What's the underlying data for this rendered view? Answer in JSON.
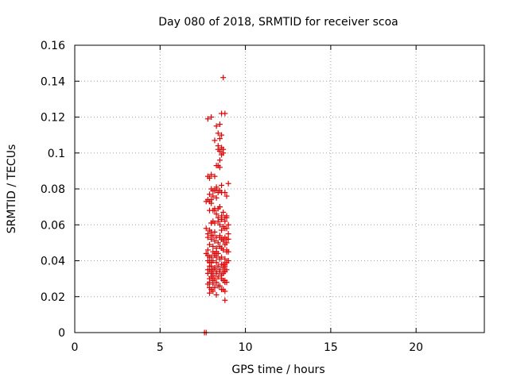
{
  "chart_data": {
    "type": "scatter",
    "title": "Day 080 of 2018, SRMTID for receiver scoa",
    "xlabel": "GPS time / hours",
    "ylabel": "SRMTID / TECUs",
    "xlim": [
      0,
      24
    ],
    "ylim": [
      0,
      0.16
    ],
    "xticks": [
      "0",
      "5",
      "10",
      "15",
      "20"
    ],
    "yticks": [
      "0",
      "0.02",
      "0.04",
      "0.06",
      "0.08",
      "0.1",
      "0.12",
      "0.14",
      "0.16"
    ],
    "grid": true,
    "marker": "plus",
    "color": "#e00000",
    "series": [
      {
        "x": [
          8.7,
          7.8,
          8.6,
          8.8,
          8.0,
          8.3,
          8.5,
          8.4,
          8.6,
          8.2,
          8.5,
          8.4,
          8.5,
          8.7,
          8.6,
          8.5,
          8.4,
          8.6,
          8.7,
          7.8,
          7.9,
          8.4,
          8.5,
          8.3,
          9.0,
          8.2,
          8.3,
          8.4,
          8.5,
          7.9,
          8.1,
          8.0,
          8.3,
          8.6,
          8.9,
          7.8,
          7.9,
          8.0,
          7.7,
          8.1,
          8.2,
          8.4,
          8.5,
          8.6,
          8.9,
          8.0,
          8.2,
          8.4,
          8.6,
          8.8,
          8.9,
          8.5,
          8.7,
          8.8,
          9.0,
          7.9,
          8.0,
          8.6,
          8.9,
          9.0,
          8.1,
          8.3,
          8.5,
          8.6,
          8.8,
          8.9,
          7.8,
          8.0,
          8.2,
          8.4,
          8.7,
          8.9,
          9.0,
          7.9,
          8.1,
          8.3,
          8.5,
          8.6,
          8.8,
          8.7,
          8.9,
          9.0,
          7.8,
          8.1,
          8.2,
          8.3,
          8.4,
          8.9,
          7.7,
          7.8,
          7.9,
          8.0,
          8.2,
          8.3,
          8.5,
          8.6,
          8.8,
          9.0,
          7.8,
          7.9,
          8.0,
          8.1,
          8.3,
          8.7,
          8.8,
          8.9,
          7.9,
          8.0,
          8.2,
          8.4,
          8.6,
          8.7,
          8.8,
          7.8,
          7.9,
          8.0,
          8.1,
          8.2,
          8.3,
          8.5,
          8.8,
          8.9,
          7.8,
          8.0,
          8.1,
          8.3,
          8.5,
          8.6,
          8.7,
          8.8,
          7.9,
          8.0,
          8.1,
          8.2,
          8.4,
          8.6,
          8.7,
          8.8,
          7.8,
          7.9,
          8.1,
          8.3,
          8.5,
          8.8,
          8.9,
          7.9,
          8.0,
          8.2,
          8.4,
          8.7,
          7.9,
          8.1,
          8.3,
          8.6,
          8.8,
          7.8,
          8.0,
          8.2,
          8.5,
          8.7,
          7.7,
          8.0,
          8.1,
          8.3,
          8.4,
          8.6,
          8.8,
          7.9,
          8.2,
          8.5,
          8.7,
          8.0,
          8.1,
          8.3,
          8.6,
          8.8,
          8.0,
          8.2,
          8.8,
          7.7,
          7.6
        ],
        "y": [
          0.142,
          0.119,
          0.122,
          0.122,
          0.12,
          0.115,
          0.116,
          0.111,
          0.11,
          0.107,
          0.108,
          0.104,
          0.101,
          0.1,
          0.099,
          0.096,
          0.102,
          0.103,
          0.102,
          0.087,
          0.086,
          0.093,
          0.092,
          0.093,
          0.083,
          0.079,
          0.08,
          0.078,
          0.079,
          0.077,
          0.076,
          0.074,
          0.075,
          0.078,
          0.076,
          0.074,
          0.073,
          0.072,
          0.073,
          0.068,
          0.068,
          0.069,
          0.07,
          0.065,
          0.064,
          0.061,
          0.061,
          0.062,
          0.063,
          0.064,
          0.065,
          0.06,
          0.059,
          0.058,
          0.06,
          0.057,
          0.056,
          0.057,
          0.058,
          0.055,
          0.054,
          0.053,
          0.054,
          0.052,
          0.053,
          0.052,
          0.053,
          0.052,
          0.051,
          0.05,
          0.051,
          0.05,
          0.052,
          0.049,
          0.048,
          0.047,
          0.048,
          0.047,
          0.049,
          0.046,
          0.045,
          0.045,
          0.046,
          0.045,
          0.044,
          0.045,
          0.044,
          0.046,
          0.044,
          0.043,
          0.042,
          0.042,
          0.043,
          0.042,
          0.041,
          0.042,
          0.041,
          0.04,
          0.04,
          0.039,
          0.039,
          0.04,
          0.039,
          0.038,
          0.038,
          0.039,
          0.037,
          0.037,
          0.036,
          0.037,
          0.038,
          0.036,
          0.037,
          0.035,
          0.035,
          0.034,
          0.035,
          0.036,
          0.034,
          0.035,
          0.034,
          0.035,
          0.033,
          0.033,
          0.032,
          0.033,
          0.034,
          0.032,
          0.033,
          0.034,
          0.03,
          0.031,
          0.029,
          0.03,
          0.031,
          0.03,
          0.029,
          0.029,
          0.027,
          0.028,
          0.027,
          0.028,
          0.026,
          0.028,
          0.028,
          0.025,
          0.024,
          0.025,
          0.026,
          0.024,
          0.022,
          0.023,
          0.021,
          0.024,
          0.023,
          0.055,
          0.054,
          0.056,
          0.053,
          0.052,
          0.058,
          0.061,
          0.062,
          0.066,
          0.064,
          0.063,
          0.062,
          0.068,
          0.069,
          0.07,
          0.067,
          0.08,
          0.079,
          0.081,
          0.082,
          0.078,
          0.088,
          0.087,
          0.018,
          0.0,
          0.0
        ]
      }
    ]
  }
}
